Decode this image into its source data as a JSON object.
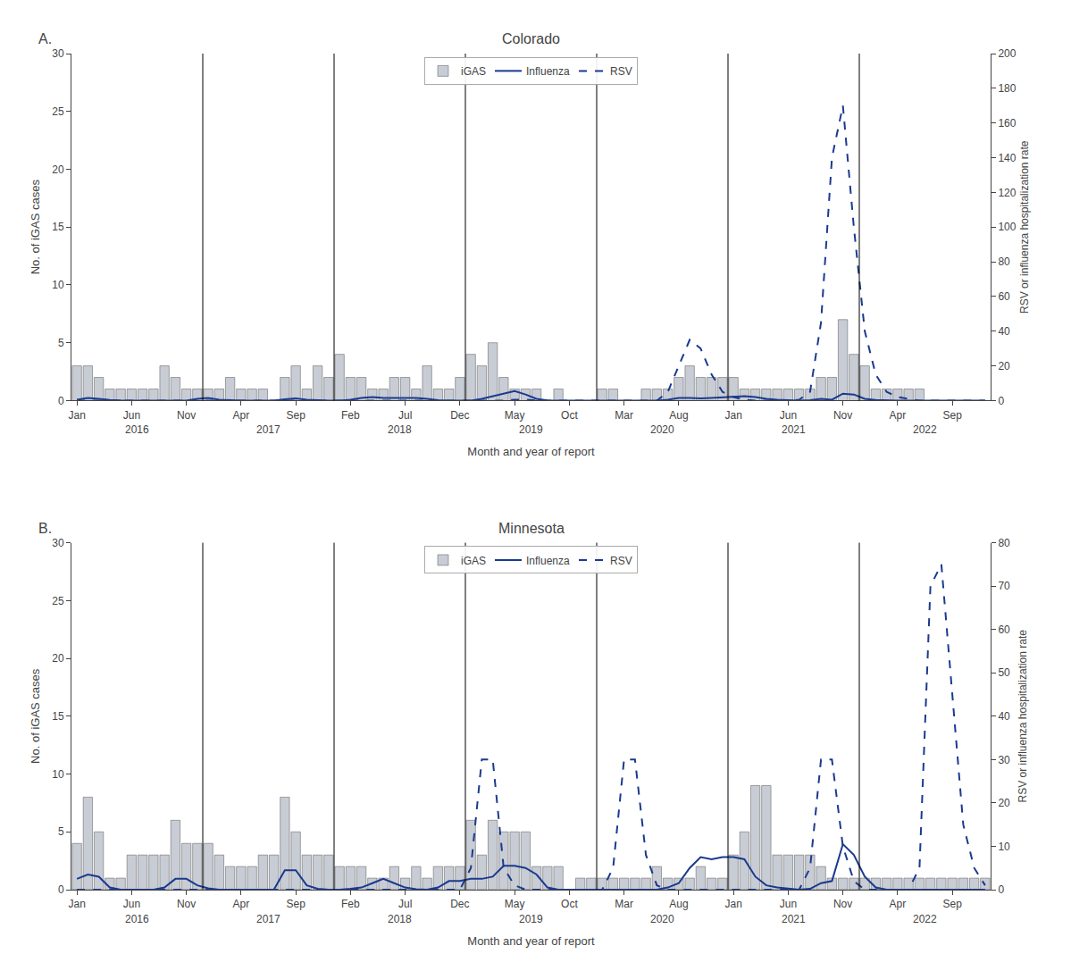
{
  "chart_data": [
    {
      "type": "bar",
      "title": "Colorado",
      "panel_label": "A.",
      "xlabel": "Month and year of report",
      "ylabel": "No. of iGAS cases",
      "y2label": "RSV or influenza hospitalization rate",
      "categories": [
        "Jan",
        null,
        null,
        null,
        null,
        "Jun",
        null,
        null,
        null,
        null,
        "Nov",
        null,
        null,
        null,
        null,
        "Apr",
        null,
        null,
        null,
        null,
        "Sep",
        null,
        null,
        null,
        null,
        "Feb",
        null,
        null,
        null,
        null,
        "Jul",
        null,
        null,
        null,
        null,
        "Dec",
        null,
        null,
        null,
        null,
        "May",
        null,
        null,
        null,
        null,
        "Oct",
        null,
        null,
        null,
        null,
        "Mar",
        null,
        null,
        null,
        null,
        "Aug",
        null,
        null,
        null,
        null,
        "Jan",
        null,
        null,
        null,
        null,
        "Jun",
        null,
        null,
        null,
        null,
        "Nov",
        null,
        null,
        null,
        null,
        "Apr",
        null,
        null,
        null,
        null,
        "Sep",
        null,
        null,
        null
      ],
      "series": [
        {
          "name": "iGAS",
          "type": "bar",
          "color": "#c8ccd4",
          "values": [
            3,
            3,
            2,
            1,
            1,
            1,
            1,
            1,
            3,
            2,
            1,
            1,
            1,
            1,
            2,
            1,
            1,
            1,
            0,
            2,
            3,
            1,
            3,
            2,
            4,
            2,
            2,
            1,
            1,
            2,
            2,
            1,
            3,
            1,
            1,
            2,
            4,
            3,
            5,
            2,
            1,
            1,
            1,
            0,
            1,
            0,
            0,
            0,
            1,
            1,
            0,
            0,
            1,
            1,
            1,
            2,
            3,
            2,
            2,
            2,
            2,
            1,
            1,
            1,
            1,
            1,
            1,
            1,
            2,
            2,
            7,
            4,
            3,
            1,
            1,
            1,
            1,
            1,
            0,
            0,
            0,
            0,
            0,
            0
          ]
        },
        {
          "name": "Influenza",
          "type": "line",
          "axis": "y2",
          "color": "#1a3a8f",
          "line_style": "solid",
          "values": [
            0.5,
            1.5,
            1.0,
            0.3,
            0.1,
            0.0,
            0.0,
            0.0,
            0.0,
            0.0,
            0.0,
            1.0,
            1.5,
            0.5,
            0.2,
            0.0,
            0.0,
            0.0,
            0.0,
            0.7,
            1.3,
            0.5,
            0.2,
            0.0,
            0.0,
            0.5,
            1.5,
            2.0,
            1.5,
            1.5,
            1.7,
            1.5,
            1.0,
            0.2,
            0.0,
            0.0,
            0.0,
            1.0,
            2.5,
            4.0,
            5.5,
            3.5,
            1.0,
            0.1,
            0.0,
            0.0,
            0.0,
            0.0,
            0.0,
            0.0,
            0.0,
            0.0,
            0.0,
            0.0,
            0.5,
            1.5,
            1.5,
            1.3,
            1.5,
            1.8,
            2.0,
            2.5,
            2.0,
            1.0,
            0.5,
            0.2,
            0.0,
            0.2,
            1.0,
            0.5,
            4.0,
            3.5,
            1.0,
            0.3,
            0.0,
            0.0,
            0.0,
            0.0,
            0.0,
            0.0,
            0.0,
            0.0,
            0.0,
            0.0
          ]
        },
        {
          "name": "RSV",
          "type": "line",
          "axis": "y2",
          "color": "#1a3a8f",
          "line_style": "dashed",
          "values": [
            0.0,
            0.0,
            0.0,
            0.0,
            0.0,
            0.0,
            0.0,
            0.0,
            0.0,
            0.0,
            0.0,
            0.0,
            0.0,
            0.0,
            0.0,
            0.0,
            0.0,
            0.0,
            0.0,
            0.0,
            0.0,
            0.0,
            0.0,
            0.0,
            0.0,
            0.0,
            0.0,
            0.0,
            0.0,
            0.0,
            0.0,
            0.0,
            0.0,
            0.0,
            0.0,
            0.0,
            0.0,
            0.0,
            0.0,
            0.0,
            0.5,
            0.5,
            0.0,
            0.0,
            0.0,
            0.0,
            0.0,
            0.0,
            0.0,
            0.0,
            0.0,
            0.0,
            0.0,
            0.0,
            5.0,
            20.0,
            35.0,
            30.0,
            15.0,
            5.0,
            2.0,
            0.5,
            0.0,
            0.0,
            0.0,
            0.0,
            0.5,
            5.0,
            45.0,
            140.0,
            170.0,
            100.0,
            40.0,
            15.0,
            5.0,
            2.0,
            1.0,
            0.0,
            0.0,
            0.0,
            0.0,
            0.0,
            0.0,
            0.0
          ]
        }
      ],
      "ylim": [
        0,
        30
      ],
      "yticks": [
        0,
        5,
        10,
        15,
        20,
        25,
        30
      ],
      "y2lim": [
        0,
        200
      ],
      "y2ticks": [
        0,
        20,
        40,
        60,
        80,
        100,
        120,
        140,
        160,
        180,
        200
      ],
      "annotations": [
        {
          "text": "2016",
          "x": 5.5
        },
        {
          "text": "2017",
          "x": 17.5
        },
        {
          "text": "2018",
          "x": 29.5
        },
        {
          "text": "2019",
          "x": 41.5
        },
        {
          "text": "2020",
          "x": 53.5
        },
        {
          "text": "2021",
          "x": 65.5
        },
        {
          "text": "2022",
          "x": 77.5
        }
      ],
      "legend": "upper center",
      "grid": false
    },
    {
      "type": "bar",
      "title": "Minnesota",
      "panel_label": "B.",
      "xlabel": "Month and year of report",
      "ylabel": "No. of iGAS cases",
      "y2label": "RSV or influenza hospitalization rate",
      "categories": [
        "Jan",
        null,
        null,
        null,
        null,
        "Jun",
        null,
        null,
        null,
        null,
        "Nov",
        null,
        null,
        null,
        null,
        "Apr",
        null,
        null,
        null,
        null,
        "Sep",
        null,
        null,
        null,
        null,
        "Feb",
        null,
        null,
        null,
        null,
        "Jul",
        null,
        null,
        null,
        null,
        "Dec",
        null,
        null,
        null,
        null,
        "May",
        null,
        null,
        null,
        null,
        "Oct",
        null,
        null,
        null,
        null,
        "Mar",
        null,
        null,
        null,
        null,
        "Aug",
        null,
        null,
        null,
        null,
        "Jan",
        null,
        null,
        null,
        null,
        "Jun",
        null,
        null,
        null,
        null,
        "Nov",
        null,
        null,
        null,
        null,
        "Apr",
        null,
        null,
        null,
        null,
        "Sep",
        null,
        null,
        null
      ],
      "series": [
        {
          "name": "iGAS",
          "type": "bar",
          "color": "#c8ccd4",
          "values": [
            4,
            8,
            5,
            1,
            1,
            3,
            3,
            3,
            3,
            6,
            4,
            4,
            4,
            3,
            2,
            2,
            2,
            3,
            3,
            8,
            5,
            3,
            3,
            3,
            2,
            2,
            2,
            1,
            1,
            2,
            1,
            2,
            1,
            2,
            2,
            2,
            6,
            3,
            6,
            5,
            5,
            5,
            2,
            2,
            2,
            0,
            1,
            1,
            1,
            1,
            1,
            1,
            1,
            2,
            1,
            1,
            1,
            2,
            1,
            1,
            3,
            5,
            9,
            9,
            3,
            3,
            3,
            3,
            2,
            1,
            1,
            1,
            1,
            1,
            1,
            1,
            1,
            1,
            1,
            1,
            1,
            1,
            1,
            1
          ]
        },
        {
          "name": "Influenza",
          "type": "line",
          "axis": "y2",
          "color": "#1a3a8f",
          "line_style": "solid",
          "values": [
            2.5,
            3.5,
            3.0,
            0.5,
            0.0,
            0.0,
            0.0,
            0.0,
            0.5,
            2.5,
            2.5,
            1.0,
            0.3,
            0.0,
            0.0,
            0.0,
            0.0,
            0.0,
            0.0,
            4.5,
            4.5,
            1.0,
            0.2,
            0.0,
            0.0,
            0.2,
            0.5,
            1.5,
            2.5,
            1.5,
            0.5,
            0.1,
            0.0,
            0.5,
            2.0,
            2.0,
            2.5,
            2.5,
            3.0,
            5.5,
            5.5,
            5.0,
            3.5,
            0.5,
            0.0,
            0.0,
            0.0,
            0.0,
            0.0,
            0.0,
            0.0,
            0.0,
            0.0,
            0.0,
            0.5,
            1.5,
            5.0,
            7.5,
            7.0,
            7.5,
            7.5,
            7.0,
            3.0,
            1.0,
            0.5,
            0.2,
            0.0,
            0.2,
            1.5,
            2.0,
            10.5,
            8.0,
            3.0,
            0.5,
            0.0,
            0.0,
            0.0,
            0.0,
            0.0,
            0.0,
            0.0,
            0.0,
            0.0,
            0.0
          ]
        },
        {
          "name": "RSV",
          "type": "line",
          "axis": "y2",
          "color": "#1a3a8f",
          "line_style": "dashed",
          "values": [
            0.0,
            0.0,
            0.0,
            0.0,
            0.0,
            0.0,
            0.0,
            0.0,
            0.0,
            0.0,
            0.0,
            0.0,
            0.0,
            0.0,
            0.0,
            0.0,
            0.0,
            0.0,
            0.0,
            0.0,
            0.0,
            0.0,
            0.0,
            0.0,
            0.0,
            0.0,
            0.0,
            0.0,
            0.0,
            0.0,
            0.0,
            0.0,
            0.0,
            0.0,
            0.0,
            0.0,
            5.0,
            30.0,
            30.0,
            5.0,
            1.0,
            0.0,
            0.0,
            0.0,
            0.0,
            0.0,
            0.0,
            0.0,
            0.0,
            5.0,
            30.0,
            30.0,
            8.0,
            1.0,
            0.0,
            0.0,
            0.0,
            0.0,
            0.0,
            0.0,
            0.0,
            0.0,
            0.0,
            0.0,
            0.0,
            0.0,
            0.0,
            5.0,
            30.0,
            30.0,
            10.0,
            2.0,
            0.0,
            0.0,
            0.0,
            0.0,
            0.0,
            5.0,
            70.0,
            75.0,
            45.0,
            15.0,
            5.0,
            1.0
          ]
        }
      ],
      "ylim": [
        0,
        30
      ],
      "yticks": [
        0,
        5,
        10,
        15,
        20,
        25,
        30
      ],
      "y2lim": [
        0,
        80
      ],
      "y2ticks": [
        0,
        10,
        20,
        30,
        40,
        50,
        60,
        70,
        80
      ],
      "annotations": [
        {
          "text": "2016",
          "x": 5.5
        },
        {
          "text": "2017",
          "x": 17.5
        },
        {
          "text": "2018",
          "x": 29.5
        },
        {
          "text": "2019",
          "x": 41.5
        },
        {
          "text": "2020",
          "x": 53.5
        },
        {
          "text": "2021",
          "x": 65.5
        },
        {
          "text": "2022",
          "x": 77.5
        }
      ],
      "legend": "upper center",
      "grid": false
    }
  ]
}
